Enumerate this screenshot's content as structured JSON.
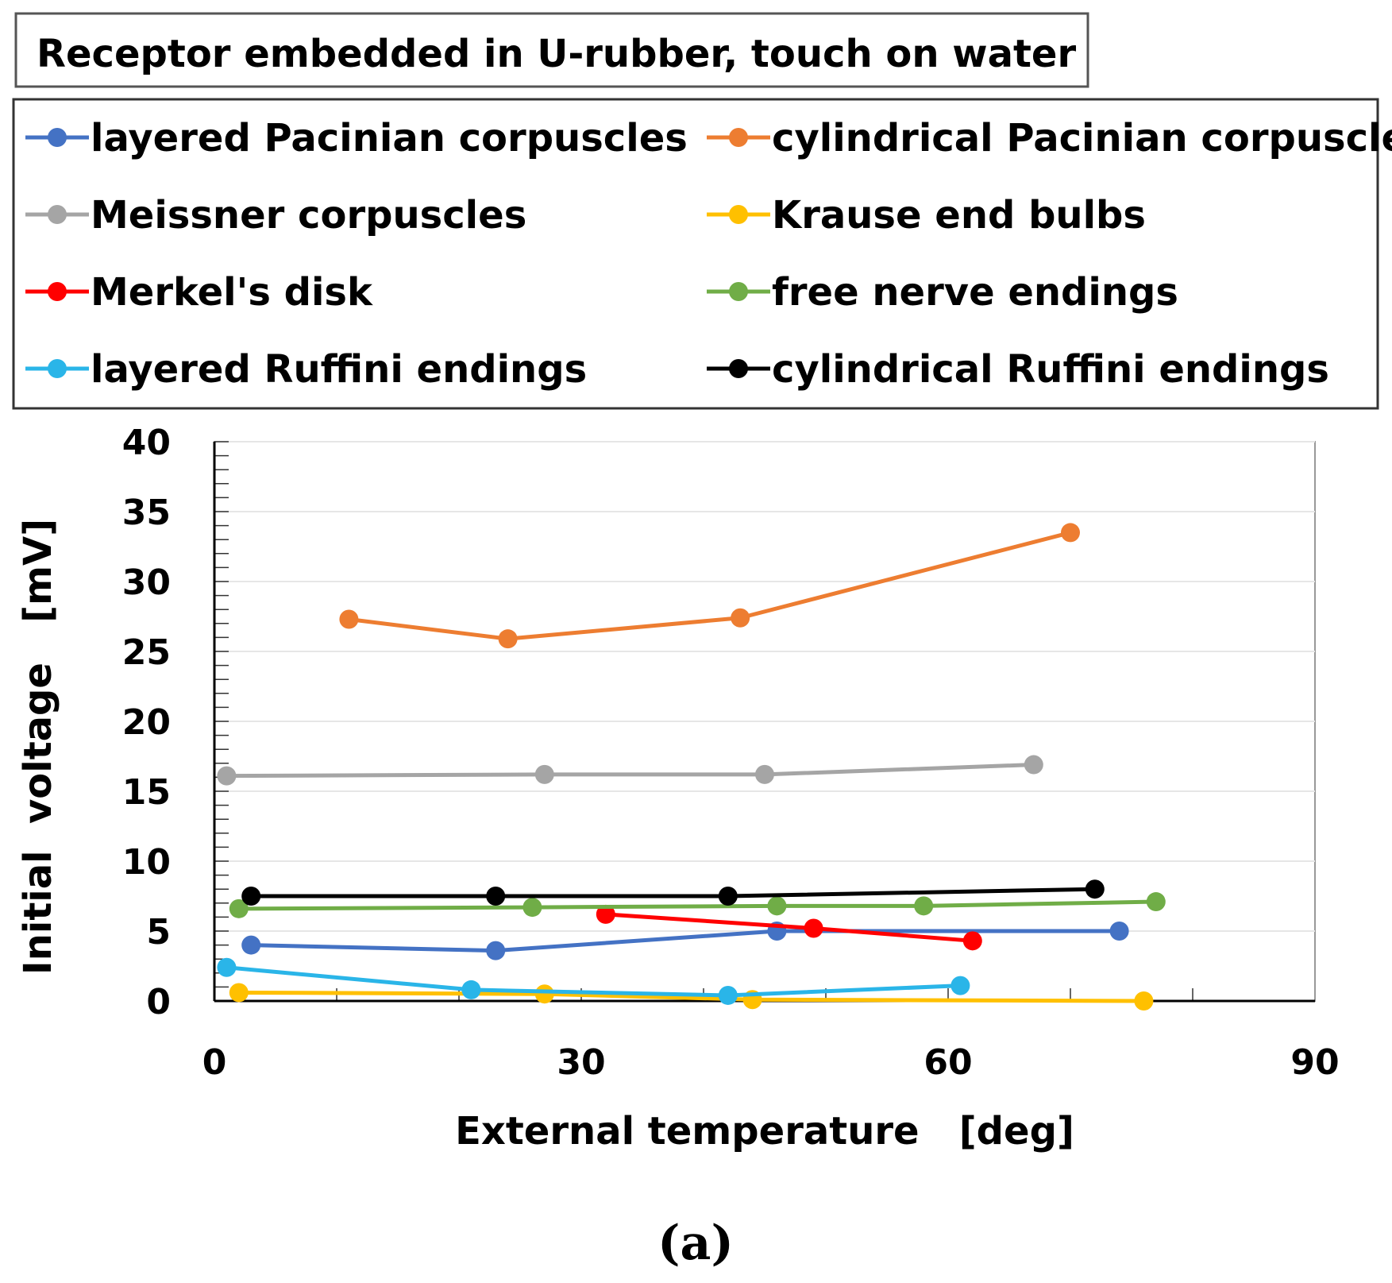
{
  "chart_data": {
    "type": "line",
    "title": "Receptor embedded in U-rubber, touch on water",
    "xlabel": "External temperature   [deg]",
    "ylabel": "Initial  voltage   [mV]",
    "caption": "(a)",
    "xlim": [
      0,
      90
    ],
    "ylim": [
      0,
      40
    ],
    "xticks": [
      0,
      30,
      60,
      90
    ],
    "yticks": [
      0,
      5,
      10,
      15,
      20,
      25,
      30,
      35,
      40
    ],
    "xtick_labels": [
      "0",
      "30",
      "60",
      "90"
    ],
    "ytick_labels": [
      "0",
      "5",
      "10",
      "15",
      "20",
      "25",
      "30",
      "35",
      "40"
    ],
    "grid": true,
    "legend_position": "top",
    "series": [
      {
        "name": "layered Pacinian corpuscles",
        "color": "#4472c4",
        "x": [
          3,
          23,
          46,
          74
        ],
        "y": [
          4.0,
          3.6,
          5.0,
          5.0
        ]
      },
      {
        "name": "cylindrical Pacinian corpuscles",
        "color": "#ed7d31",
        "x": [
          11,
          24,
          43,
          70
        ],
        "y": [
          27.3,
          25.9,
          27.4,
          33.5
        ]
      },
      {
        "name": "Meissner corpuscles",
        "color": "#a5a5a5",
        "x": [
          1,
          27,
          45,
          67
        ],
        "y": [
          16.1,
          16.2,
          16.2,
          16.9
        ]
      },
      {
        "name": "Krause end bulbs",
        "color": "#ffc000",
        "x": [
          2,
          27,
          44,
          76
        ],
        "y": [
          0.6,
          0.5,
          0.1,
          0.0
        ]
      },
      {
        "name": "Merkel's disk",
        "color": "#ff0000",
        "x": [
          32,
          49,
          62
        ],
        "y": [
          6.2,
          5.2,
          4.3
        ]
      },
      {
        "name": "free nerve endings",
        "color": "#70ad47",
        "x": [
          2,
          26,
          46,
          58,
          77
        ],
        "y": [
          6.6,
          6.7,
          6.8,
          6.8,
          7.1
        ]
      },
      {
        "name": "layered Ruffini endings",
        "color": "#2ab5e8",
        "x": [
          1,
          21,
          42,
          61
        ],
        "y": [
          2.4,
          0.8,
          0.4,
          1.1
        ]
      },
      {
        "name": "cylindrical Ruffini endings",
        "color": "#000000",
        "x": [
          3,
          23,
          42,
          72
        ],
        "y": [
          7.5,
          7.5,
          7.5,
          8.0
        ]
      }
    ]
  }
}
